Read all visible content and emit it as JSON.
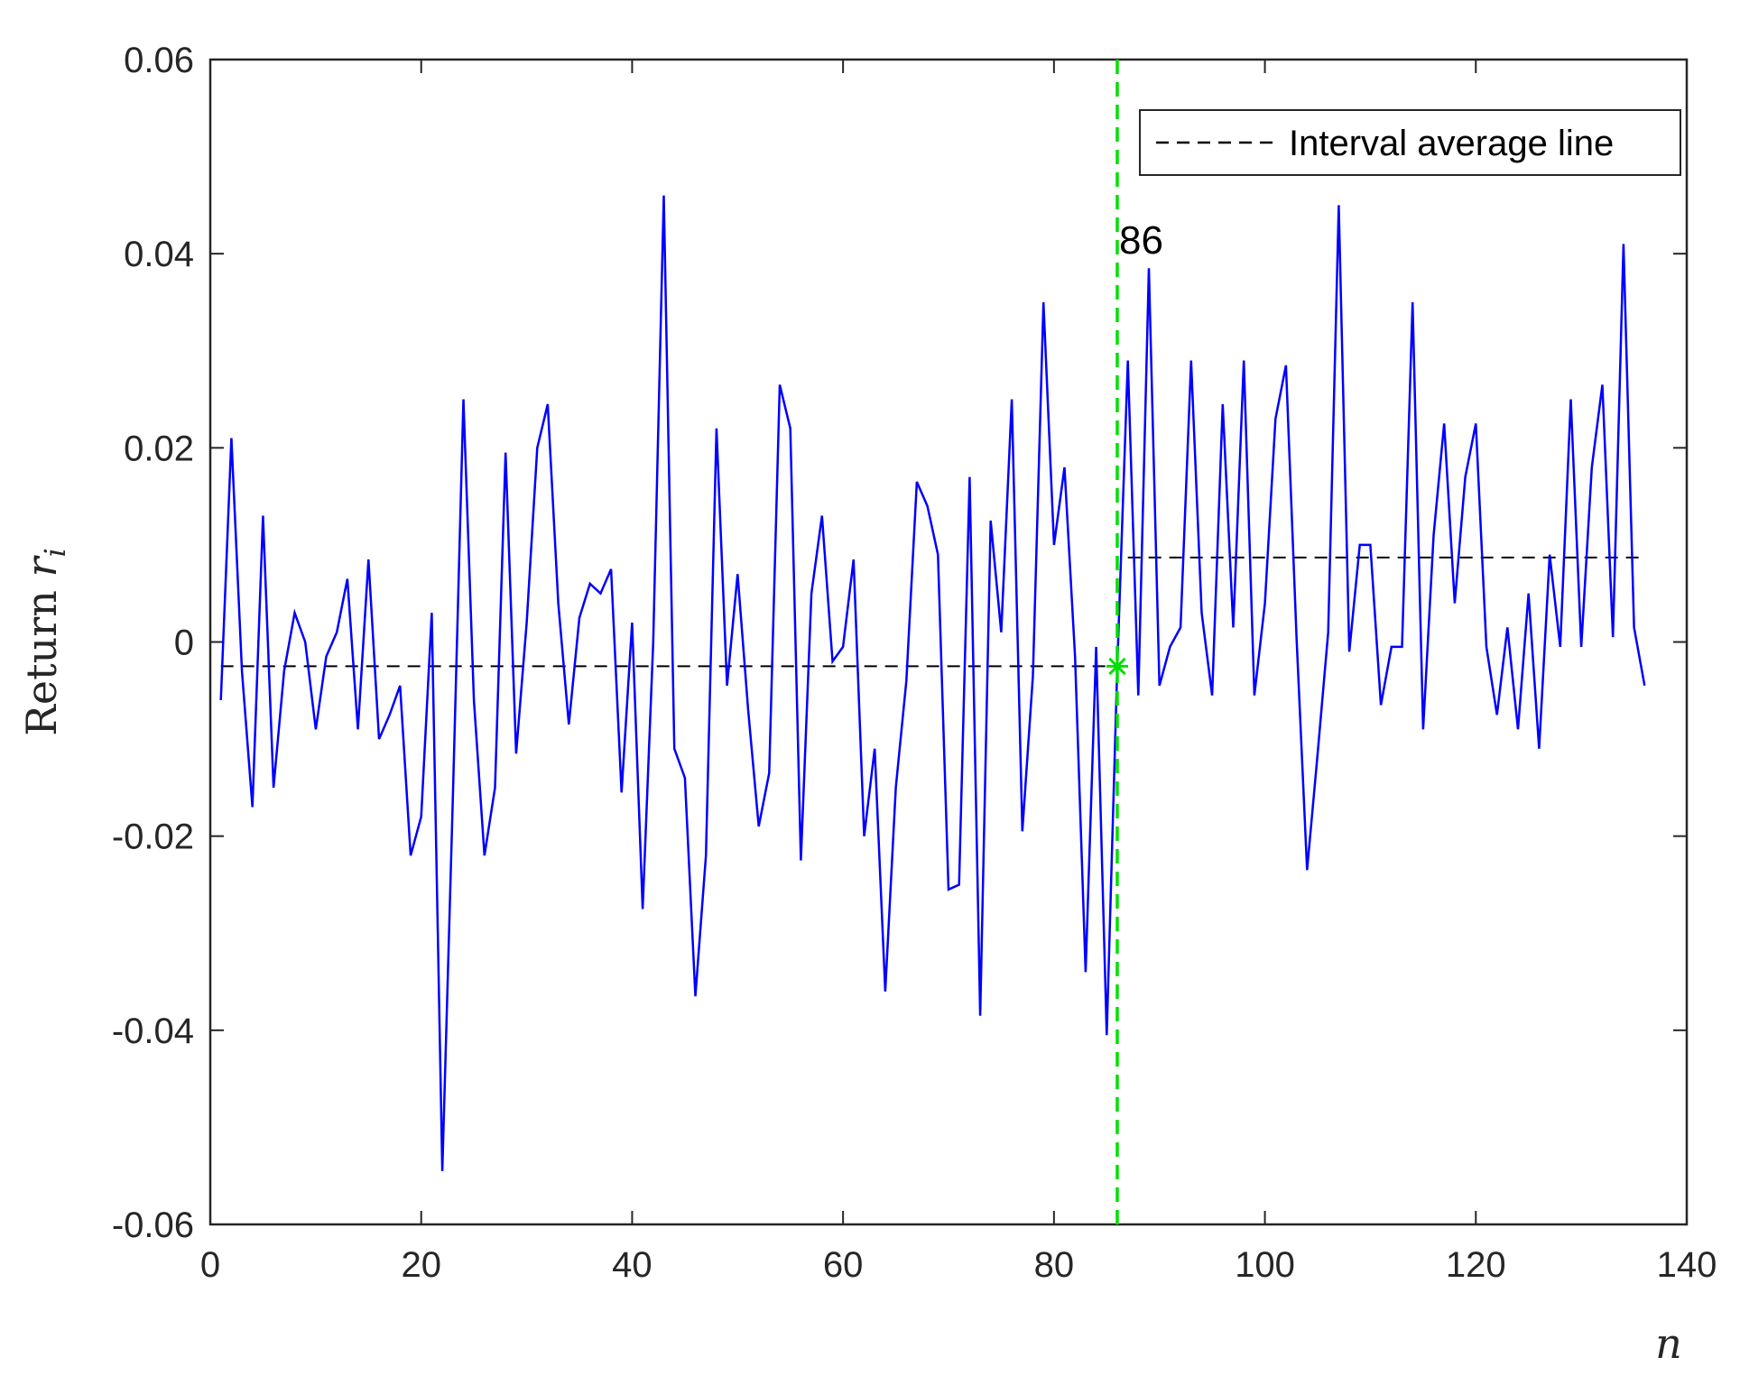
{
  "chart_data": {
    "type": "line",
    "title": "",
    "xlabel": "n",
    "ylabel": "Return",
    "ylabel_symbol": "r",
    "ylabel_subscript": "i",
    "xlim": [
      0,
      140
    ],
    "ylim": [
      -0.06,
      0.06
    ],
    "xticks": [
      0,
      20,
      40,
      60,
      80,
      100,
      120,
      140
    ],
    "yticks": [
      -0.06,
      -0.04,
      -0.02,
      0,
      0.02,
      0.04,
      0.06
    ],
    "xtick_labels": [
      "0",
      "20",
      "40",
      "60",
      "80",
      "100",
      "120",
      "140"
    ],
    "ytick_labels": [
      "-0.06",
      "-0.04",
      "-0.02",
      "0",
      "0.02",
      "0.04",
      "0.06"
    ],
    "grid": false,
    "legend_position": "top-right",
    "series": [
      {
        "style": "solid",
        "color": "#0000ff",
        "x": [
          1,
          2,
          3,
          4,
          5,
          6,
          7,
          8,
          9,
          10,
          11,
          12,
          13,
          14,
          15,
          16,
          17,
          18,
          19,
          20,
          21,
          22,
          23,
          24,
          25,
          26,
          27,
          28,
          29,
          30,
          31,
          32,
          33,
          34,
          35,
          36,
          37,
          38,
          39,
          40,
          41,
          42,
          43,
          44,
          45,
          46,
          47,
          48,
          49,
          50,
          51,
          52,
          53,
          54,
          55,
          56,
          57,
          58,
          59,
          60,
          61,
          62,
          63,
          64,
          65,
          66,
          67,
          68,
          69,
          70,
          71,
          72,
          73,
          74,
          75,
          76,
          77,
          78,
          79,
          80,
          81,
          82,
          83,
          84,
          85,
          86,
          87,
          88,
          89,
          90,
          91,
          92,
          93,
          94,
          95,
          96,
          97,
          98,
          99,
          100,
          101,
          102,
          103,
          104,
          105,
          106,
          107,
          108,
          109,
          110,
          111,
          112,
          113,
          114,
          115,
          116,
          117,
          118,
          119,
          120,
          121,
          122,
          123,
          124,
          125,
          126,
          127,
          128,
          129,
          130,
          131,
          132,
          133,
          134,
          135,
          136
        ],
        "y": [
          -0.006,
          0.021,
          -0.003,
          -0.017,
          0.013,
          -0.015,
          -0.003,
          0.003,
          0.0,
          -0.009,
          -0.0015,
          0.001,
          0.0065,
          -0.009,
          0.0085,
          -0.01,
          -0.0075,
          -0.0045,
          -0.022,
          -0.018,
          0.003,
          -0.0545,
          -0.016,
          0.025,
          -0.006,
          -0.022,
          -0.015,
          0.0195,
          -0.0115,
          0.002,
          0.02,
          0.0245,
          0.004,
          -0.0085,
          0.0025,
          0.006,
          0.005,
          0.0075,
          -0.0155,
          0.002,
          -0.0275,
          0.0,
          0.046,
          -0.011,
          -0.014,
          -0.0365,
          -0.022,
          0.022,
          -0.0045,
          0.007,
          -0.007,
          -0.019,
          -0.0135,
          0.0265,
          0.022,
          -0.0225,
          0.005,
          0.013,
          -0.002,
          -0.0005,
          0.0085,
          -0.02,
          -0.011,
          -0.036,
          -0.015,
          -0.004,
          0.0165,
          0.014,
          0.009,
          -0.0255,
          -0.025,
          0.017,
          -0.0385,
          0.0125,
          0.001,
          0.025,
          -0.0195,
          -0.0035,
          0.035,
          0.01,
          0.018,
          -0.0015,
          -0.034,
          -0.0005,
          -0.0405,
          -0.0025,
          0.029,
          -0.0055,
          0.0385,
          -0.0045,
          -0.0005,
          0.0015,
          0.029,
          0.003,
          -0.0055,
          0.0245,
          0.0015,
          0.029,
          -0.0055,
          0.004,
          0.023,
          0.0285,
          0.0005,
          -0.0235,
          -0.0115,
          0.001,
          0.045,
          -0.001,
          0.01,
          0.01,
          -0.0065,
          -0.0005,
          -0.0005,
          0.035,
          -0.009,
          0.011,
          0.0225,
          0.004,
          0.017,
          0.0225,
          -0.0005,
          -0.0075,
          0.0015,
          -0.009,
          0.005,
          -0.011,
          0.009,
          -0.0005,
          0.025,
          -0.0005,
          0.018,
          0.0265,
          0.0005,
          0.041,
          0.0015,
          -0.0045
        ]
      }
    ],
    "interval_average_line": {
      "name": "Interval average line",
      "style": "dashed",
      "color": "#000000",
      "segments": [
        {
          "x_start": 1,
          "x_end": 86,
          "y": -0.0025
        },
        {
          "x_start": 87,
          "x_end": 136,
          "y": 0.0087
        }
      ]
    },
    "change_point": {
      "x": 86,
      "y": -0.0025,
      "label": "86",
      "color": "#00e000",
      "marker": "asterisk",
      "line_style": "dashed"
    },
    "legend": [
      {
        "label": "Interval average line",
        "style": "dashed",
        "color": "#000000"
      }
    ]
  }
}
